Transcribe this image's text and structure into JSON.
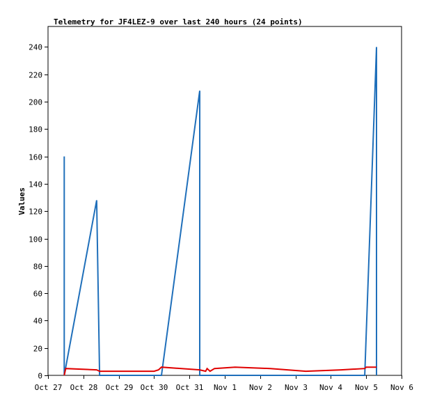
{
  "chart_data": {
    "type": "line",
    "title": "Telemetry for JF4LEZ-9 over last 240 hours (24 points)",
    "xlabel": "",
    "ylabel": "Values",
    "x_ticks": [
      "Oct 27",
      "Oct 28",
      "Oct 29",
      "Oct 30",
      "Oct 31",
      "Nov 1",
      "Nov 2",
      "Nov 3",
      "Nov 4",
      "Nov 5",
      "Nov 6"
    ],
    "xlim": [
      "Oct 27",
      "Nov 6"
    ],
    "y_ticks": [
      0,
      20,
      40,
      60,
      80,
      100,
      120,
      140,
      160,
      180,
      200,
      220,
      240
    ],
    "ylim": [
      0,
      255
    ],
    "grid": false,
    "legend": "none",
    "series": [
      {
        "color": "#1f6fba",
        "points": [
          [
            "Oct 27 11:00",
            160
          ],
          [
            "Oct 27 11:00",
            0
          ],
          [
            "Oct 28 09:00",
            128
          ],
          [
            "Oct 28 11:00",
            0
          ],
          [
            "Oct 30 05:00",
            0
          ],
          [
            "Oct 31 07:00",
            208
          ],
          [
            "Oct 31 07:00",
            0
          ],
          [
            "Nov 4 23:00",
            0
          ],
          [
            "Nov 5 07:00",
            240
          ],
          [
            "Nov 5 07:00",
            0
          ]
        ]
      },
      {
        "color": "#e00000",
        "points": [
          [
            "Oct 27 11:00",
            0
          ],
          [
            "Oct 27 12:00",
            5
          ],
          [
            "Oct 28 09:00",
            4
          ],
          [
            "Oct 28 11:00",
            3
          ],
          [
            "Oct 30 00:00",
            3
          ],
          [
            "Oct 30 03:00",
            4
          ],
          [
            "Oct 30 05:00",
            6
          ],
          [
            "Oct 31 07:00",
            4
          ],
          [
            "Oct 31 11:00",
            3
          ],
          [
            "Oct 31 12:00",
            5
          ],
          [
            "Oct 31 14:00",
            3
          ],
          [
            "Oct 31 17:00",
            5
          ],
          [
            "Nov 1 07:00",
            6
          ],
          [
            "Nov 2 07:00",
            5
          ],
          [
            "Nov 3 07:00",
            3
          ],
          [
            "Nov 4 07:00",
            4
          ],
          [
            "Nov 4 23:00",
            5
          ],
          [
            "Nov 5 00:00",
            6
          ],
          [
            "Nov 5 07:00",
            6
          ]
        ]
      }
    ]
  }
}
